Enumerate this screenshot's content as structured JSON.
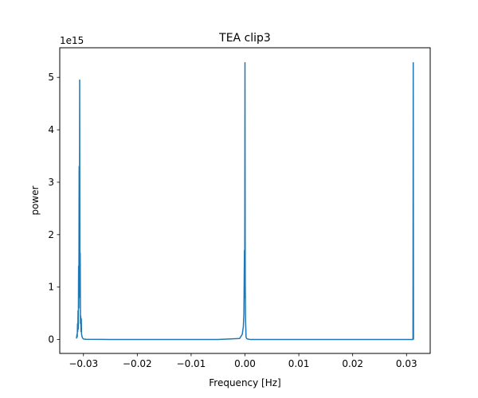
{
  "chart_data": {
    "type": "line",
    "title": "TEA clip3",
    "xlabel": "Frequency [Hz]",
    "ylabel": "power",
    "y_offset_label": "1e15",
    "xlim": [
      -0.0344,
      0.0344
    ],
    "ylim": [
      -0.265,
      5.565
    ],
    "y_scale_factor": 1000000000000000.0,
    "xticks": [
      -0.03,
      -0.02,
      -0.01,
      0.0,
      0.01,
      0.02,
      0.03
    ],
    "xtick_labels": [
      "−0.03",
      "−0.02",
      "−0.01",
      "0.00",
      "0.01",
      "0.02",
      "0.03"
    ],
    "yticks": [
      0,
      1,
      2,
      3,
      4,
      5
    ],
    "ytick_labels": [
      "0",
      "1",
      "2",
      "3",
      "4",
      "5"
    ],
    "grid": false,
    "line_color": "#1f77b4",
    "series": [
      {
        "x": [
          -0.0313,
          -0.0312,
          -0.03115,
          -0.0311,
          -0.03105,
          -0.031,
          -0.03095,
          -0.0309,
          -0.03085,
          -0.0308,
          -0.03075,
          -0.0307,
          -0.03065,
          -0.0306,
          -0.03055,
          -0.0305,
          -0.03045,
          -0.0304,
          -0.03035,
          -0.0303,
          -0.03025,
          -0.0302,
          -0.0301,
          -0.03,
          -0.0295,
          -0.025,
          -0.02,
          -0.015,
          -0.01,
          -0.005,
          -0.001,
          -0.0005,
          -0.0003,
          -0.0002,
          -0.0001,
          -5e-05,
          0.0,
          5e-05,
          0.0001,
          0.0002,
          0.0003,
          0.0005,
          0.001,
          0.01,
          0.02,
          0.031,
          0.0312,
          0.03125,
          0.0313
        ],
        "y": [
          0.02,
          0.1,
          0.05,
          0.3,
          0.15,
          0.55,
          0.2,
          1.4,
          0.6,
          3.3,
          1.0,
          4.95,
          0.8,
          1.65,
          0.3,
          0.45,
          0.15,
          0.4,
          0.1,
          0.08,
          0.05,
          0.04,
          0.02,
          0.01,
          0.005,
          0.0,
          0.0,
          0.0,
          0.0,
          0.0,
          0.02,
          0.1,
          0.25,
          0.5,
          1.7,
          0.8,
          5.28,
          1.1,
          0.4,
          0.05,
          0.02,
          0.01,
          0.0,
          0.0,
          0.0,
          0.0,
          0.0,
          5.28,
          0.0
        ]
      }
    ]
  }
}
